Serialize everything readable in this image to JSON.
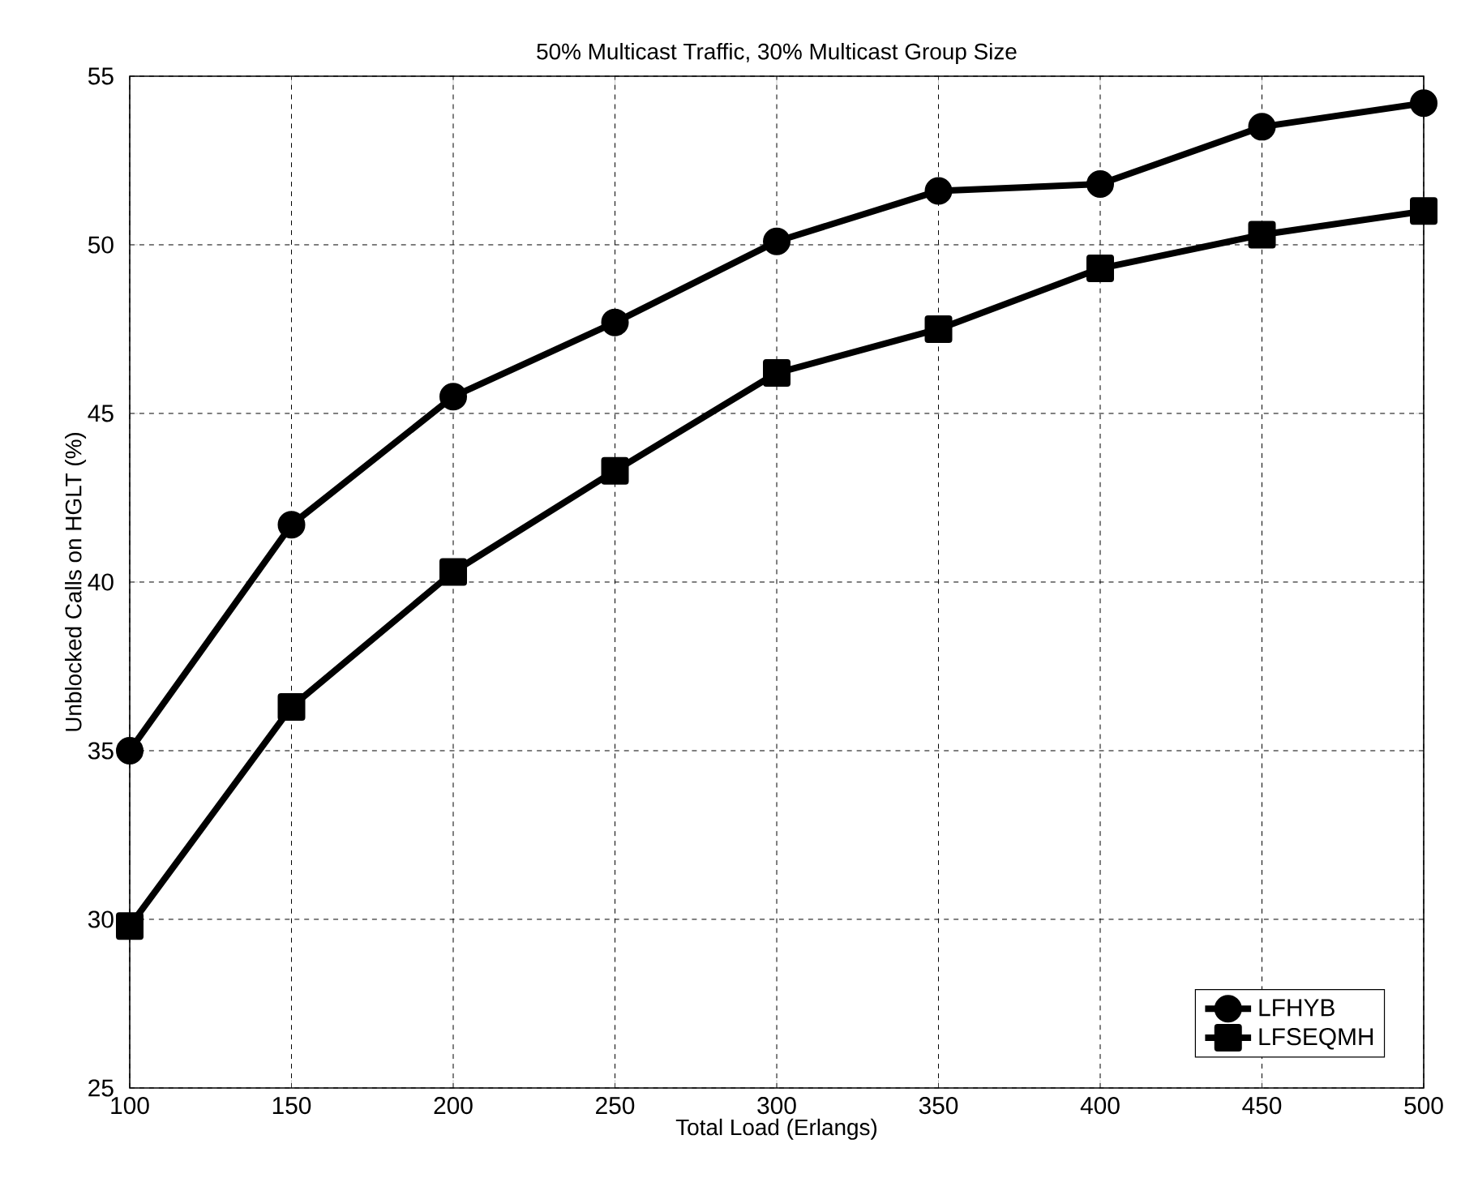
{
  "chart_data": {
    "type": "line",
    "title": "50% Multicast Traffic, 30% Multicast Group Size",
    "xlabel": "Total Load (Erlangs)",
    "ylabel": "Unblocked Calls on HGLT (%)",
    "x": [
      100,
      150,
      200,
      250,
      300,
      350,
      400,
      450,
      500
    ],
    "series": [
      {
        "name": "LFHYB",
        "color": "#000000",
        "marker": "circle",
        "values": [
          35.0,
          41.7,
          45.5,
          47.7,
          50.1,
          51.6,
          51.8,
          53.5,
          54.2
        ]
      },
      {
        "name": "LFSEQMH",
        "color": "#000000",
        "marker": "square",
        "values": [
          29.8,
          36.3,
          40.3,
          43.3,
          46.2,
          47.5,
          49.3,
          50.3,
          51.0
        ]
      }
    ],
    "xlim": [
      100,
      500
    ],
    "xticks": [
      100,
      150,
      200,
      250,
      300,
      350,
      400,
      450,
      500
    ],
    "ylim": [
      25,
      55
    ],
    "yticks": [
      25,
      30,
      35,
      40,
      45,
      50,
      55
    ],
    "grid": true,
    "legend": "bottom right",
    "line_style": "solid"
  }
}
